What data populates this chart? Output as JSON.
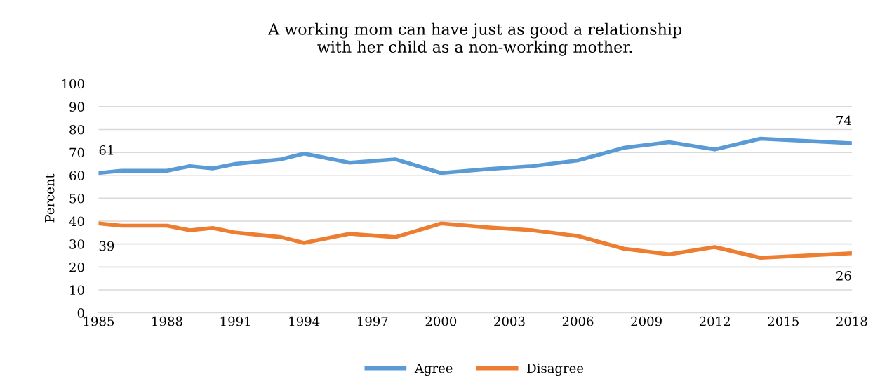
{
  "chart_data": {
    "type": "line",
    "title": "A working mom can have just as good a relationship\nwith her child as a non-working mother.",
    "ylabel": "Percent",
    "x": [
      1985,
      1986,
      1988,
      1989,
      1990,
      1991,
      1993,
      1994,
      1996,
      1998,
      2000,
      2002,
      2004,
      2006,
      2008,
      2010,
      2012,
      2014,
      2016,
      2018
    ],
    "series": [
      {
        "name": "Agree",
        "color": "#5b9bd5",
        "values": [
          61,
          62,
          62,
          64,
          63,
          65,
          67,
          69.5,
          65.5,
          67,
          61,
          62.7,
          64,
          66.5,
          72,
          74.5,
          71.3,
          76,
          75,
          74
        ],
        "value_labels": [
          "61",
          null,
          null,
          null,
          null,
          null,
          null,
          null,
          null,
          null,
          null,
          null,
          null,
          null,
          null,
          null,
          null,
          null,
          null,
          "74"
        ]
      },
      {
        "name": "Disagree",
        "color": "#ed7d31",
        "values": [
          39,
          38,
          38,
          36,
          37,
          35,
          33,
          30.5,
          34.5,
          33,
          39,
          37.3,
          36,
          33.5,
          28,
          25.5,
          28.7,
          24,
          25,
          26
        ],
        "value_labels": [
          "39",
          null,
          null,
          null,
          null,
          null,
          null,
          null,
          null,
          null,
          null,
          null,
          null,
          null,
          null,
          null,
          null,
          null,
          null,
          "26"
        ]
      }
    ],
    "xlim": [
      1985,
      2018
    ],
    "xticks": [
      1985,
      1988,
      1991,
      1994,
      1997,
      2000,
      2003,
      2006,
      2009,
      2012,
      2015,
      2018
    ],
    "ylim": [
      0,
      100
    ],
    "yticks": [
      0,
      10,
      20,
      30,
      40,
      50,
      60,
      70,
      80,
      90,
      100
    ],
    "grid": "y",
    "legend": "bottom",
    "marker": "none",
    "line_style": "solid"
  }
}
